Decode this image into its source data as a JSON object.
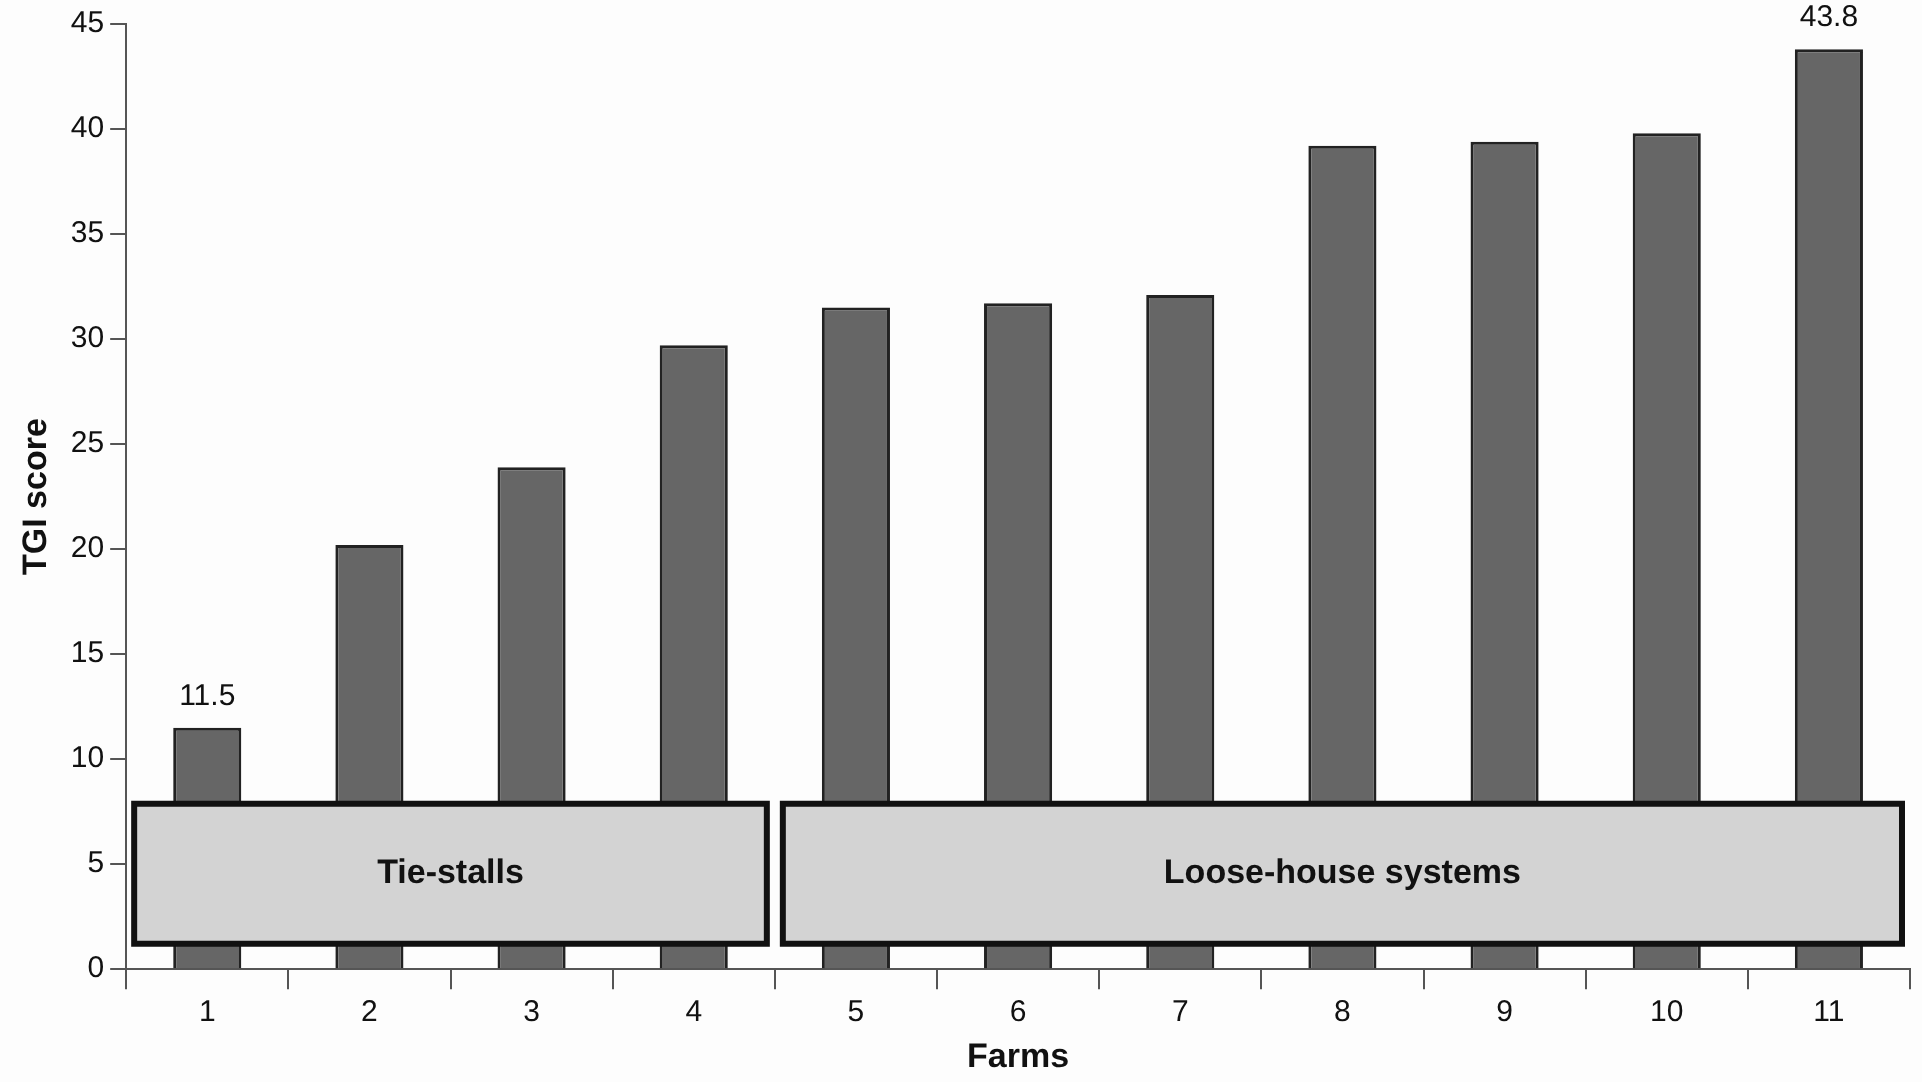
{
  "chart_data": {
    "type": "bar",
    "xlabel": "Farms",
    "ylabel": "TGI score",
    "categories": [
      "1",
      "2",
      "3",
      "4",
      "5",
      "6",
      "7",
      "8",
      "9",
      "10",
      "11"
    ],
    "values": [
      11.5,
      20.2,
      23.9,
      29.7,
      31.5,
      31.7,
      32.1,
      39.2,
      39.4,
      39.8,
      43.8
    ],
    "value_labels": [
      "11.5",
      null,
      null,
      null,
      null,
      null,
      null,
      null,
      null,
      null,
      "43.8"
    ],
    "color": "#666666",
    "ylim": [
      0,
      45
    ],
    "yticks": [
      0,
      5,
      10,
      15,
      20,
      25,
      30,
      35,
      40,
      45
    ],
    "grid": false,
    "legend": false,
    "bands": [
      {
        "axis": "x",
        "from": "1",
        "to": "4",
        "label": "Tie-stalls",
        "color": "#d3d3d3"
      },
      {
        "axis": "x",
        "from": "5",
        "to": "11",
        "label": "Loose-house systems",
        "color": "#d3d3d3"
      }
    ]
  }
}
